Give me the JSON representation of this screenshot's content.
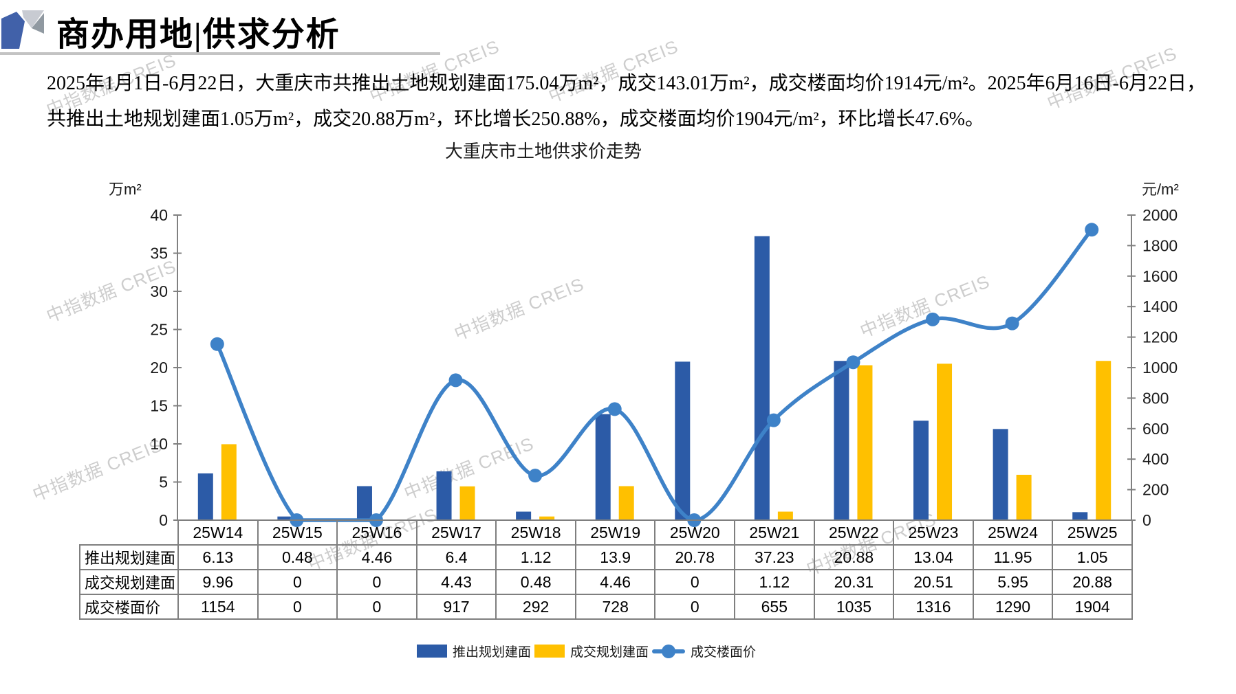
{
  "header": {
    "title": "商办用地|供求分析"
  },
  "summary": {
    "lines": [
      "2025年1月1日-6月22日，大重庆市共推出土地规划建面175.04万m²，成交143.01万m²，成交楼面均价1914元/m²。2025年6月16日-6月22日，",
      "共推出土地规划建面1.05万m²，成交20.88万m²，环比增长250.88%，成交楼面均价1904元/m²，环比增长47.6%。"
    ]
  },
  "watermark": {
    "text": "中指数据 CREIS"
  },
  "chart_data": {
    "type": "bar",
    "subtype": "bar+line combo, dual axis",
    "title": "大重庆市土地供求价走势",
    "categories": [
      "25W14",
      "25W15",
      "25W16",
      "25W17",
      "25W18",
      "25W19",
      "25W20",
      "25W21",
      "25W22",
      "25W23",
      "25W24",
      "25W25"
    ],
    "series": [
      {
        "name": "推出规划建面",
        "type": "bar",
        "axis": "left",
        "color": "#2C5BA7",
        "values": [
          6.13,
          0.48,
          4.46,
          6.4,
          1.12,
          13.9,
          20.78,
          37.23,
          20.88,
          13.04,
          11.95,
          1.05
        ]
      },
      {
        "name": "成交规划建面",
        "type": "bar",
        "axis": "left",
        "color": "#FFC000",
        "values": [
          9.96,
          0,
          0,
          4.43,
          0.48,
          4.46,
          0,
          1.12,
          20.31,
          20.51,
          5.95,
          20.88
        ]
      },
      {
        "name": "成交楼面价",
        "type": "line",
        "axis": "right",
        "color": "#3E82C8",
        "values": [
          1154,
          0,
          0,
          917,
          292,
          728,
          0,
          655,
          1035,
          1316,
          1290,
          1904
        ]
      }
    ],
    "left_axis": {
      "label": "万m²",
      "min": 0,
      "max": 40,
      "step": 5
    },
    "right_axis": {
      "label": "元/m²",
      "min": 0,
      "max": 2000,
      "step": 200
    },
    "grid": false,
    "legend_position": "bottom"
  },
  "table": {
    "row_labels": [
      "推出规划建面",
      "成交规划建面",
      "成交楼面价"
    ],
    "columns": [
      "25W14",
      "25W15",
      "25W16",
      "25W17",
      "25W18",
      "25W19",
      "25W20",
      "25W21",
      "25W22",
      "25W23",
      "25W24",
      "25W25"
    ],
    "rows": [
      [
        "6.13",
        "0.48",
        "4.46",
        "6.4",
        "1.12",
        "13.9",
        "20.78",
        "37.23",
        "20.88",
        "13.04",
        "11.95",
        "1.05"
      ],
      [
        "9.96",
        "0",
        "0",
        "4.43",
        "0.48",
        "4.46",
        "0",
        "1.12",
        "20.31",
        "20.51",
        "5.95",
        "20.88"
      ],
      [
        "1154",
        "0",
        "0",
        "917",
        "292",
        "728",
        "0",
        "655",
        "1035",
        "1316",
        "1290",
        "1904"
      ]
    ]
  },
  "colors": {
    "bar_supply": "#2C5BA7",
    "bar_deal": "#FFC000",
    "price_line": "#3E82C8",
    "axis": "#808080",
    "table_border": "#7F7F7F"
  }
}
